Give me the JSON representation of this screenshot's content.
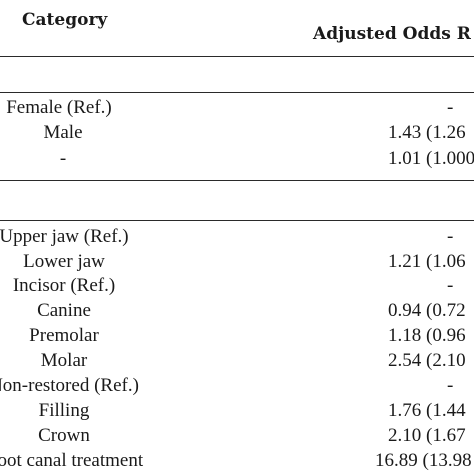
{
  "header": {
    "category": "Category",
    "adjusted": "Adjusted Odds R"
  },
  "rows": [
    {
      "category": "Female (Ref.)",
      "value": "-"
    },
    {
      "category": "Male",
      "value": "1.43 (1.26"
    },
    {
      "category": "-",
      "value": "1.01 (1.000"
    },
    {
      "category": "Upper jaw (Ref.)",
      "value": "-"
    },
    {
      "category": "Lower jaw",
      "value": "1.21 (1.06"
    },
    {
      "category": "Incisor (Ref.)",
      "value": "-"
    },
    {
      "category": "Canine",
      "value": "0.94 (0.72"
    },
    {
      "category": "Premolar",
      "value": "1.18 (0.96"
    },
    {
      "category": "Molar",
      "value": "2.54 (2.10"
    },
    {
      "category": "Non-restored (Ref.)",
      "value": "-"
    },
    {
      "category": "Filling",
      "value": "1.76 (1.44"
    },
    {
      "category": "Crown",
      "value": "2.10 (1.67"
    },
    {
      "category": "Root canal treatment",
      "value": "16.89 (13.98"
    }
  ]
}
